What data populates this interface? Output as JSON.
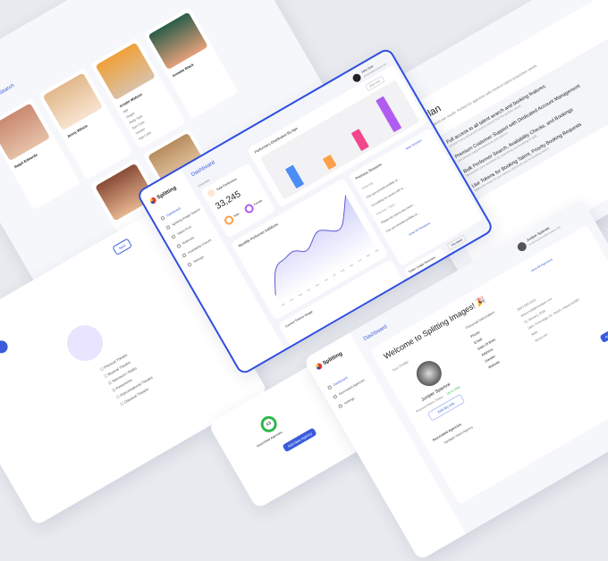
{
  "brand": {
    "name": "Splitting",
    "sub": "images"
  },
  "main": {
    "header": "Dashboard",
    "user": {
      "name": "John Doe",
      "email": "johndoe@example.com"
    },
    "sidebar": [
      "Dashboard",
      "Splitting Image Search",
      "Talent Pool",
      "Referrals",
      "Availability Checks",
      "Settings"
    ],
    "overview_label": "Overview",
    "total_performers_label": "Total Performers",
    "total_performers": "33,245",
    "male_label": "Male",
    "female_label": "Female",
    "bar_chart_title": "Performers Distribution By Age",
    "bar_dropdown": "2024 Year",
    "bar_levels": [
      0.55,
      0.3,
      0.5,
      0.9
    ],
    "bar_colors": [
      "#4a8df6",
      "#ff9f4a",
      "#f2478a",
      "#b15cf0"
    ],
    "sessions_title": "Previous Sessions",
    "new_session": "New Session",
    "sessions": [
      "Yesterday",
      "Can you provide profiles of...",
      "I'm looking for actors with a...",
      "Previous 7 days",
      "Please list actors who have...",
      "Can you provide profiles of..."
    ],
    "view_all": "View All Sessions",
    "line_chart_title": "Monthly Performer Additions",
    "line_months": [
      "Jan",
      "Feb",
      "Mar",
      "Apr",
      "May",
      "Jun",
      "Jul",
      "Aug",
      "Sep",
      "Oct",
      "Nov",
      "Dec"
    ],
    "line_dropdown": "This Week",
    "token_title": "Token Usage Overview",
    "current_token": "Current Tokens Usage"
  },
  "pro": {
    "title": "Pro Plan",
    "desc": "Includes 300 tokens per month. Perfect for agencies with medium talent acquisition needs.",
    "features": [
      {
        "title": "Full access to all talent search and booking features.",
        "desc": "Unlock every advanced search tool to find the perfect talent."
      },
      {
        "title": "Premium Customer Support with Dedicated Account Management",
        "desc": "Get priority support whenever you need it."
      },
      {
        "title": "Bulk Performer Search, Availability Checks, and Bookings",
        "desc": "Streamline your workflow by searching and booking in bulk."
      },
      {
        "title": "Use Tokens for Booking Talent, Priority Booking Requests",
        "desc": "Make the most of your tokens whenever you're booking talent."
      }
    ]
  },
  "welcome": {
    "header": "Dashboard",
    "title": "Welcome to Splitting Images! 🎉",
    "user": {
      "name": "Juniper Sparrow",
      "email": "junipersparrow@example.com"
    },
    "sidebar": [
      "Dashboard",
      "Associated Agencies",
      "Settings"
    ],
    "profile_label": "Your Profile",
    "profile_name": "Juniper Sparrow",
    "status_label": "Representation Status",
    "status": "Up to Date",
    "edit": "Edit My Info",
    "personal_label": "Personal Information",
    "fields": [
      "Phone:",
      "Email:",
      "Date Of Birth:",
      "Address:",
      "Gender:",
      "Website:"
    ],
    "values": [
      "(907) 555-0101",
      "debra.holt@example.com",
      "01 January, 2024",
      "1901 Thornridge Cir. Shiloh, Hawaii 81063",
      "Male",
      "kenzi.com"
    ],
    "view_all": "View All Agencies",
    "assoc": "Associated Agencies",
    "agency": "Spotlight Talent Agency",
    "add": "Add New Agency"
  },
  "search": {
    "title": "Splitting Image Search",
    "people": [
      {
        "name": "Kristin Watson",
        "attrs": [
          "Age",
          "Height",
          "Body Type",
          "Eye Color",
          "Gender",
          "Hair Color"
        ]
      },
      {
        "name": "Ralph Edwards"
      },
      {
        "name": "Jenny Wilson"
      },
      {
        "name": "Annette Black"
      }
    ]
  },
  "small": {
    "value": "43",
    "label": "Associated Agencies",
    "add": "Add New Agency",
    "user": "Juniper Sparrow"
  },
  "form": {
    "next": "Next",
    "options": [
      "Physical Theatre",
      "Musical Theatre",
      "Television / Radio",
      "Pantomime",
      "Improvisational Theatre",
      "Classical Theatre"
    ]
  }
}
